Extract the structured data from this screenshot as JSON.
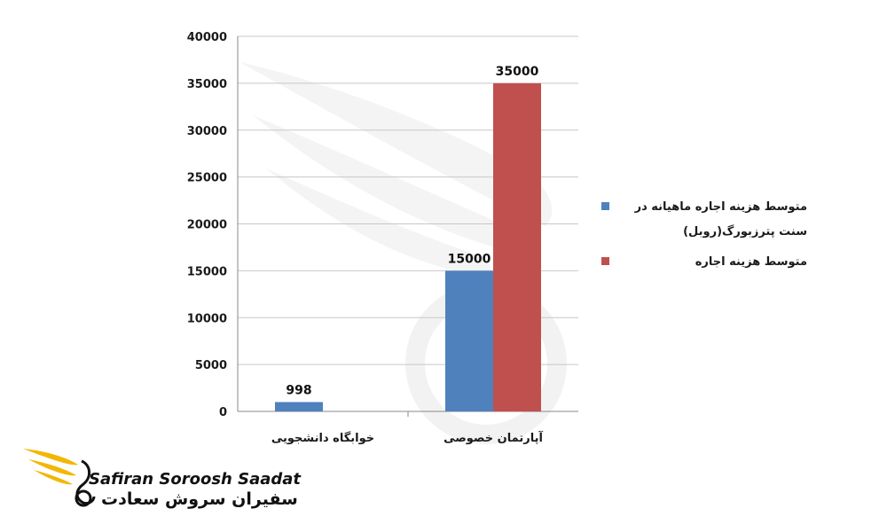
{
  "chart_data": {
    "type": "bar",
    "categories": [
      "خوابگاه دانشجویی",
      "آپارتمان خصوصی"
    ],
    "series": [
      {
        "name": "متوسط هزینه اجاره ماهیانه در سنت پترزبورگ(روبل)",
        "color": "#4f81bd",
        "values": [
          998,
          15000
        ]
      },
      {
        "name": "متوسط هزینه اجاره",
        "color": "#c0504d",
        "values": [
          null,
          35000
        ]
      }
    ],
    "ylim": [
      0,
      40000
    ],
    "yticks": [
      "0",
      "5000",
      "10000",
      "15000",
      "20000",
      "25000",
      "30000",
      "35000",
      "40000"
    ],
    "data_labels": [
      [
        "998",
        "15000"
      ],
      [
        "",
        "35000"
      ]
    ],
    "grid": true,
    "legend_position": "right"
  },
  "legend": {
    "items": [
      {
        "label": "متوسط هزینه اجاره ماهیانه در سنت پترزبورگ(روبل)",
        "color": "#4f81bd"
      },
      {
        "label": "متوسط هزینه اجاره",
        "color": "#c0504d"
      }
    ]
  },
  "logo": {
    "name_en": "Safiran Soroosh Saadat",
    "name_fa": "سفیران سروش سعادت",
    "mark_icon": "wing-swan-icon",
    "accent_color": "#f2b705"
  }
}
